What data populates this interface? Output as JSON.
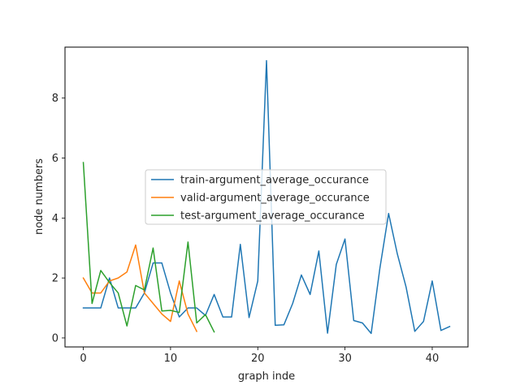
{
  "chart_data": {
    "type": "line",
    "title": "",
    "xlabel": "graph inde",
    "ylabel": "node numbers",
    "xlim": [
      -2.1,
      44.1
    ],
    "ylim": [
      -0.3,
      9.7
    ],
    "xticks": [
      0,
      10,
      20,
      30,
      40
    ],
    "yticks": [
      0,
      2,
      4,
      6,
      8
    ],
    "grid": false,
    "legend_position": "center-left",
    "series": [
      {
        "name": "train-argument_average_occurance",
        "color": "#1f77b4",
        "x": [
          0,
          1,
          2,
          3,
          4,
          5,
          6,
          7,
          8,
          9,
          10,
          11,
          12,
          13,
          14,
          15,
          16,
          17,
          18,
          19,
          20,
          21,
          22,
          23,
          24,
          25,
          26,
          27,
          28,
          29,
          30,
          31,
          32,
          33,
          34,
          35,
          36,
          37,
          38,
          39,
          40,
          41,
          42
        ],
        "y": [
          1.0,
          1.0,
          1.0,
          2.0,
          1.0,
          1.0,
          1.0,
          1.5,
          2.5,
          2.5,
          1.5,
          0.7,
          1.0,
          1.0,
          0.75,
          1.45,
          0.7,
          0.7,
          3.12,
          0.68,
          1.9,
          9.25,
          0.42,
          0.44,
          1.15,
          2.1,
          1.45,
          2.9,
          0.16,
          2.45,
          3.3,
          0.58,
          0.5,
          0.15,
          2.33,
          4.15,
          2.8,
          1.7,
          0.22,
          0.55,
          1.9,
          0.25,
          0.38
        ]
      },
      {
        "name": "valid-argument_average_occurance",
        "color": "#ff7f0e",
        "x": [
          0,
          1,
          2,
          3,
          4,
          5,
          6,
          7,
          8,
          9,
          10,
          11,
          12,
          13
        ],
        "y": [
          2.0,
          1.5,
          1.5,
          1.9,
          2.0,
          2.2,
          3.1,
          1.5,
          1.15,
          0.8,
          0.55,
          1.9,
          0.8,
          0.22
        ]
      },
      {
        "name": "test-argument_average_occurance",
        "color": "#2ca02c",
        "x": [
          0,
          1,
          2,
          3,
          4,
          5,
          6,
          7,
          8,
          9,
          10,
          11,
          12,
          13,
          14,
          15
        ],
        "y": [
          5.85,
          1.15,
          2.25,
          1.85,
          1.5,
          0.4,
          1.75,
          1.6,
          3.0,
          0.9,
          0.92,
          0.85,
          3.2,
          0.5,
          0.78,
          0.2
        ]
      }
    ]
  }
}
